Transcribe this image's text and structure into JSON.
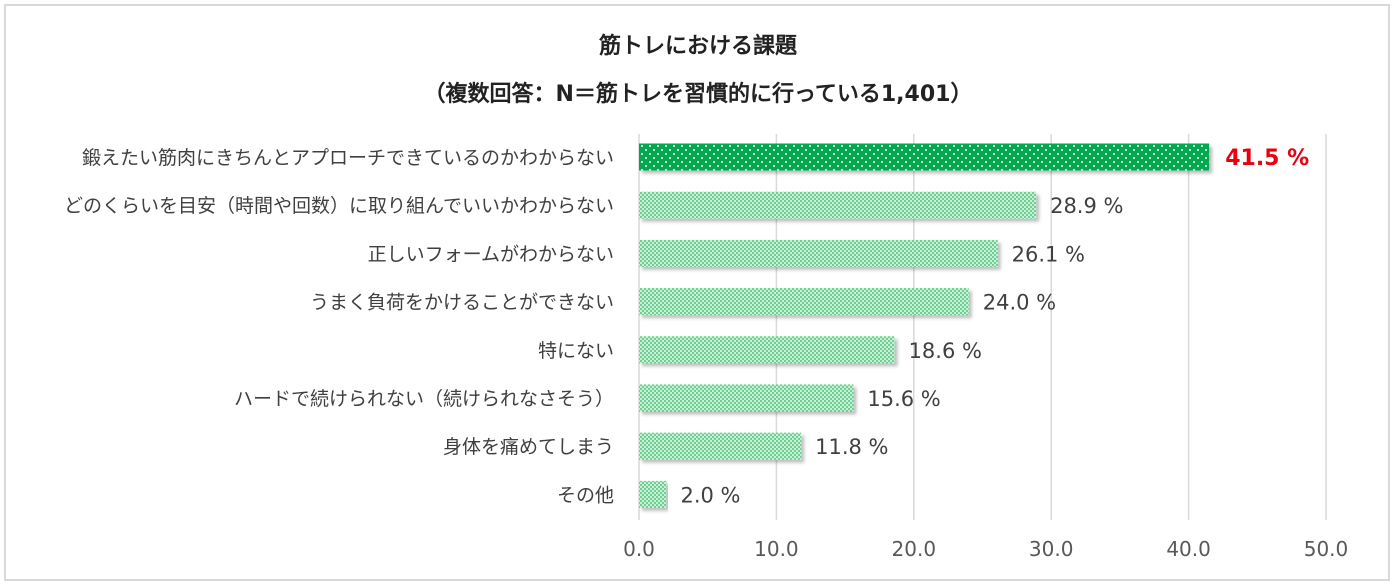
{
  "chart_data": {
    "type": "bar",
    "orientation": "horizontal",
    "title": "筋トレにおける課題",
    "subtitle": "（複数回答：N＝筋トレを習慣的に行っている1,401）",
    "categories": [
      "鍛えたい筋肉にきちんとアプローチできているのかわからない",
      "どのくらいを目安（時間や回数）に取り組んでいいかわからない",
      "正しいフォームがわからない",
      "うまく負荷をかけることができない",
      "特にない",
      "ハードで続けられない（続けられなさそう）",
      "身体を痛めてしまう",
      "その他"
    ],
    "values": [
      41.5,
      28.9,
      26.1,
      24.0,
      18.6,
      15.6,
      11.8,
      2.0
    ],
    "value_labels": [
      "41.5 %",
      "28.9 %",
      "26.1 %",
      "24.0 %",
      "18.6 %",
      "15.6 %",
      "11.8 %",
      "2.0 %"
    ],
    "xlim": [
      0,
      50
    ],
    "xticks": [
      "0.0",
      "10.0",
      "20.0",
      "30.0",
      "40.0",
      "50.0"
    ],
    "grid": true,
    "highlight_index": 0,
    "colors": {
      "highlight_bar": "#00b050",
      "bar": "#a8e6c0",
      "bar_pattern": "#2fb863",
      "highlight_label": "#e8000e",
      "grid": "#d9d9d9"
    }
  }
}
